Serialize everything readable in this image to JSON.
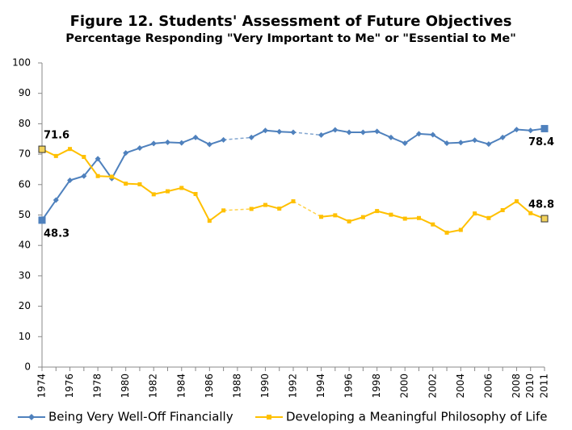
{
  "chart_data": {
    "type": "line",
    "title": "Figure 12.  Students' Assessment of Future Objectives",
    "subtitle": "Percentage Responding \"Very Important to Me\" or \"Essential to Me\"",
    "categories": [
      "1974",
      null,
      "1976",
      null,
      "1978",
      null,
      "1980",
      null,
      "1982",
      null,
      "1984",
      null,
      "1986",
      null,
      "1988",
      null,
      "1990",
      null,
      "1992",
      null,
      "1994",
      null,
      "1996",
      null,
      "1998",
      null,
      "2000",
      null,
      "2002",
      null,
      "2004",
      null,
      "2006",
      null,
      "2008",
      "2010",
      "2011"
    ],
    "series": [
      {
        "name": "Being Very Well-Off Financially",
        "color": "#4f81bd",
        "values": [
          48.3,
          54.9,
          61.4,
          62.8,
          68.5,
          62.0,
          70.4,
          72.0,
          73.5,
          73.9,
          73.7,
          75.5,
          73.2,
          74.7,
          null,
          75.5,
          77.8,
          77.4,
          77.2,
          null,
          76.3,
          78.0,
          77.2,
          77.2,
          77.5,
          75.5,
          73.6,
          76.7,
          76.4,
          73.6,
          73.8,
          74.6,
          73.3,
          75.5,
          78.1,
          77.8,
          78.4
        ],
        "value_labels": [
          "48.3",
          null,
          null,
          null,
          null,
          null,
          null,
          null,
          null,
          null,
          null,
          null,
          null,
          null,
          null,
          null,
          null,
          null,
          null,
          null,
          null,
          null,
          null,
          null,
          null,
          null,
          null,
          null,
          null,
          null,
          null,
          null,
          null,
          null,
          null,
          null,
          "78.4"
        ]
      },
      {
        "name": "Developing a Meaningful Philosophy of Life",
        "color": "#ffc000",
        "values": [
          71.6,
          69.4,
          71.7,
          69.1,
          62.8,
          62.6,
          60.3,
          60.1,
          56.8,
          57.8,
          58.9,
          56.9,
          48.1,
          51.5,
          null,
          52.0,
          53.3,
          52.1,
          54.5,
          null,
          49.4,
          49.9,
          47.9,
          49.3,
          51.3,
          50.1,
          48.8,
          49.0,
          46.9,
          44.2,
          45.1,
          50.5,
          49.0,
          51.6,
          54.5,
          50.6,
          48.8
        ],
        "value_labels": [
          "71.6",
          null,
          null,
          null,
          null,
          null,
          null,
          null,
          null,
          null,
          null,
          null,
          null,
          null,
          null,
          null,
          null,
          null,
          null,
          null,
          null,
          null,
          null,
          null,
          null,
          null,
          null,
          null,
          null,
          null,
          null,
          null,
          null,
          null,
          null,
          null,
          "48.8"
        ]
      }
    ],
    "ylim": [
      0,
      100
    ],
    "yticks": [
      0,
      10,
      20,
      30,
      40,
      50,
      60,
      70,
      80,
      90,
      100
    ],
    "grid": false,
    "legend": "bottom"
  }
}
